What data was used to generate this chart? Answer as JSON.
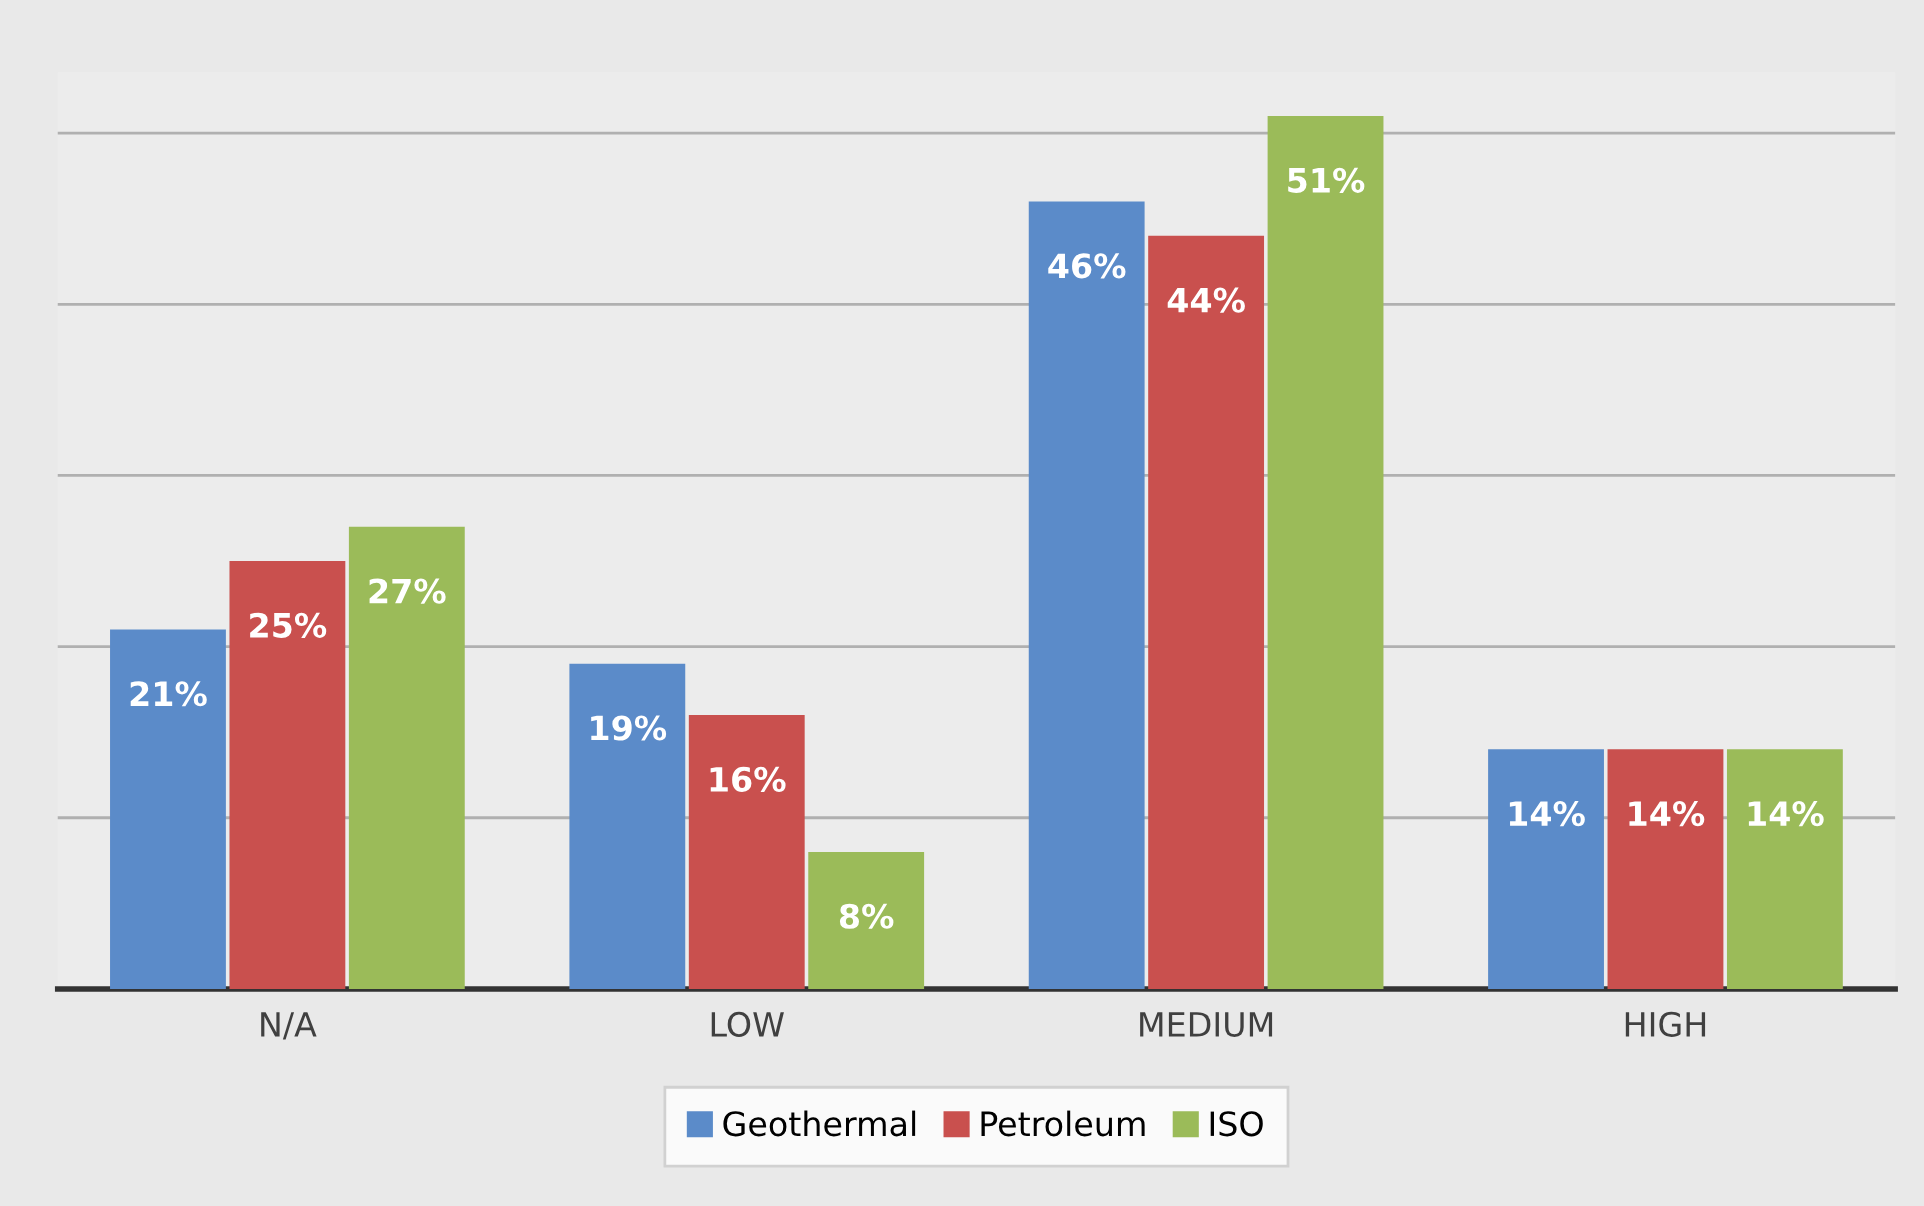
{
  "chart_data": {
    "type": "bar",
    "categories": [
      "N/A",
      "LOW",
      "MEDIUM",
      "HIGH"
    ],
    "series": [
      {
        "name": "Geothermal",
        "color": "#5b8bc9",
        "values": [
          21,
          19,
          46,
          14
        ],
        "value_labels": [
          "21%",
          "19%",
          "46%",
          "14%"
        ]
      },
      {
        "name": "Petroleum",
        "color": "#c9504e",
        "values": [
          25,
          16,
          44,
          14
        ],
        "value_labels": [
          "25%",
          "16%",
          "44%",
          "14%"
        ]
      },
      {
        "name": "ISO",
        "color": "#9bbb59",
        "values": [
          27,
          8,
          51,
          14
        ],
        "value_labels": [
          "27%",
          "8%",
          "51%",
          "14%"
        ]
      }
    ],
    "tick_labels": "x",
    "grid": "y",
    "legend": "bottom"
  }
}
